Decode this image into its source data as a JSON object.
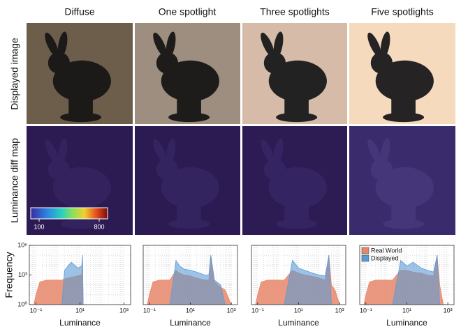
{
  "column_titles": [
    "Diffuse",
    "One spotlight",
    "Three spotlights",
    "Five spotlights"
  ],
  "row_labels": [
    "Displayed image",
    "Luminance diff map"
  ],
  "colorbar": {
    "range": [
      100,
      800
    ],
    "ticks": [
      100,
      800
    ]
  },
  "chart_data": [
    {
      "type": "area",
      "ylabel": "Frequency",
      "xlabel": "Luminance",
      "log_x": true,
      "log_y": true,
      "grid": true,
      "xlim": [
        0.05,
        2000
      ],
      "ylim": [
        1,
        1000000
      ],
      "xticks": [
        {
          "value": 0.1,
          "label": "10⁻¹"
        },
        {
          "value": 10,
          "label": "10¹"
        },
        {
          "value": 1000,
          "label": "10³"
        }
      ],
      "yticks": [
        {
          "value": 1,
          "label": "10⁰"
        },
        {
          "value": 1000,
          "label": "10³"
        },
        {
          "value": 1000000,
          "label": "10⁶"
        }
      ],
      "x": [
        0.08,
        0.1,
        0.15,
        0.3,
        0.6,
        1,
        1.5,
        2,
        4,
        8,
        12,
        13,
        14,
        20
      ],
      "series": [
        {
          "name": "Real World",
          "color": "#e8866a",
          "values": [
            1,
            10,
            200,
            300,
            300,
            300,
            300,
            400,
            600,
            800,
            1000,
            30000,
            1,
            1
          ]
        },
        {
          "name": "Displayed",
          "color": "#5b9bd5",
          "values": [
            1,
            1,
            1,
            1,
            1,
            1,
            1,
            3000,
            20000,
            5000,
            8000,
            100000,
            1,
            1
          ]
        }
      ]
    },
    {
      "type": "area",
      "xlabel": "Luminance",
      "log_x": true,
      "log_y": true,
      "grid": true,
      "xlim": [
        0.05,
        2000
      ],
      "ylim": [
        1,
        1000000
      ],
      "xticks": [
        {
          "value": 0.1,
          "label": "10⁻¹"
        },
        {
          "value": 10,
          "label": "10¹"
        },
        {
          "value": 1000,
          "label": "10³"
        }
      ],
      "x": [
        0.08,
        0.1,
        0.15,
        0.3,
        0.6,
        1,
        2,
        3,
        5,
        10,
        20,
        50,
        80,
        100,
        150,
        300,
        500,
        1000
      ],
      "series": [
        {
          "name": "Real World",
          "color": "#e8866a",
          "values": [
            1,
            10,
            200,
            300,
            300,
            300,
            3000,
            1500,
            1000,
            800,
            500,
            300,
            300,
            100000,
            200,
            60,
            30,
            1
          ]
        },
        {
          "name": "Displayed",
          "color": "#5b9bd5",
          "values": [
            1,
            1,
            1,
            1,
            1,
            1,
            30000,
            8000,
            4000,
            3000,
            2000,
            1000,
            1000,
            100000,
            300,
            100,
            1,
            1
          ]
        }
      ]
    },
    {
      "type": "area",
      "xlabel": "Luminance",
      "log_x": true,
      "log_y": true,
      "grid": true,
      "xlim": [
        0.05,
        2000
      ],
      "ylim": [
        1,
        1000000
      ],
      "xticks": [
        {
          "value": 0.1,
          "label": "10⁻¹"
        },
        {
          "value": 10,
          "label": "10¹"
        },
        {
          "value": 1000,
          "label": "10³"
        }
      ],
      "x": [
        0.08,
        0.1,
        0.15,
        0.3,
        0.6,
        1,
        2,
        5,
        10,
        20,
        50,
        100,
        200,
        300,
        400,
        600,
        1000
      ],
      "series": [
        {
          "name": "Real World",
          "color": "#e8866a",
          "values": [
            1,
            10,
            200,
            300,
            300,
            300,
            300,
            3000,
            1500,
            1000,
            700,
            500,
            300,
            100000,
            100,
            30,
            1
          ]
        },
        {
          "name": "Displayed",
          "color": "#5b9bd5",
          "values": [
            1,
            1,
            1,
            1,
            1,
            1,
            1,
            30000,
            5000,
            3000,
            1500,
            1000,
            800,
            100000,
            1,
            1,
            1
          ]
        }
      ]
    },
    {
      "type": "area",
      "xlabel": "Luminance",
      "log_x": true,
      "log_y": true,
      "grid": true,
      "legend": "top-left",
      "xlim": [
        0.05,
        2000
      ],
      "ylim": [
        1,
        1000000
      ],
      "xticks": [
        {
          "value": 0.1,
          "label": "10⁻¹"
        },
        {
          "value": 10,
          "label": "10¹"
        },
        {
          "value": 1000,
          "label": "10³"
        }
      ],
      "x": [
        0.08,
        0.1,
        0.15,
        0.3,
        0.6,
        1,
        2,
        5,
        10,
        20,
        50,
        100,
        200,
        300,
        400,
        600,
        1000
      ],
      "series": [
        {
          "name": "Real World",
          "color": "#e8866a",
          "values": [
            1,
            10,
            200,
            300,
            300,
            300,
            300,
            3000,
            3000,
            2000,
            1500,
            1000,
            800,
            100000,
            100,
            1,
            1
          ]
        },
        {
          "name": "Displayed",
          "color": "#5b9bd5",
          "values": [
            1,
            1,
            1,
            1,
            1,
            1,
            1,
            30000,
            8000,
            20000,
            5000,
            3000,
            2000,
            100000,
            1,
            1,
            1
          ]
        }
      ]
    }
  ]
}
